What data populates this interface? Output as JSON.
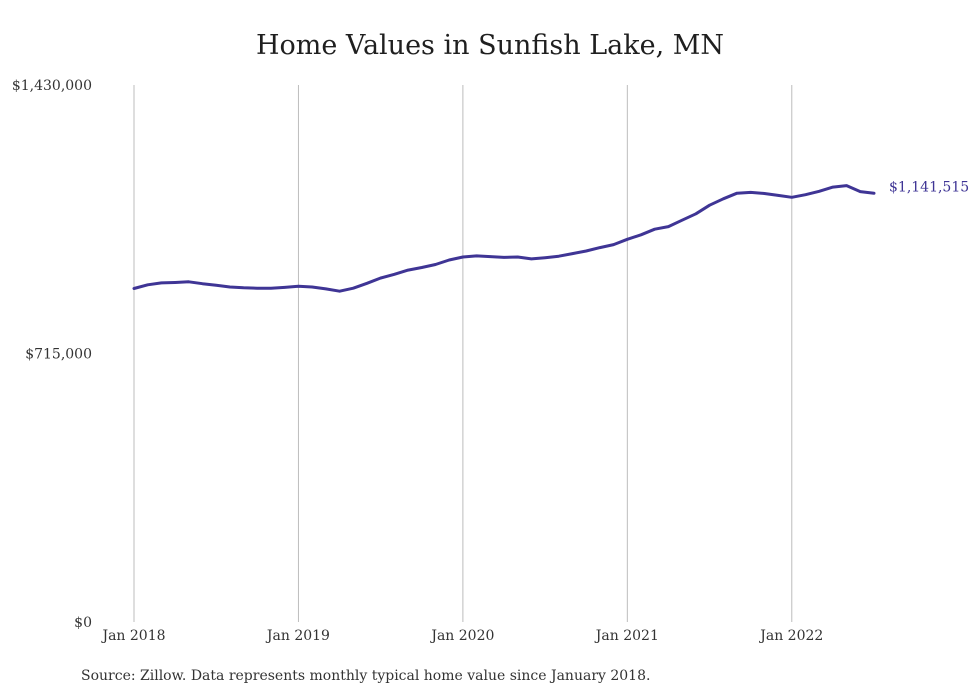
{
  "chart_data": {
    "type": "line",
    "title": "Home Values in Sunfish Lake, MN",
    "xlabel": "",
    "ylabel": "",
    "ylim": [
      0,
      1430000
    ],
    "xlim": [
      "2018-01",
      "2022-07"
    ],
    "y_ticks": [
      {
        "value": 0,
        "label": "$0"
      },
      {
        "value": 715000,
        "label": "$715,000"
      },
      {
        "value": 1430000,
        "label": "$1,430,000"
      }
    ],
    "x_ticks": [
      {
        "x": "2018-01",
        "label": "Jan 2018"
      },
      {
        "x": "2019-01",
        "label": "Jan 2019"
      },
      {
        "x": "2020-01",
        "label": "Jan 2020"
      },
      {
        "x": "2021-01",
        "label": "Jan 2021"
      },
      {
        "x": "2022-01",
        "label": "Jan 2022"
      }
    ],
    "grid": "vertical lines at year ticks",
    "series": [
      {
        "color": "#3f3595",
        "end_label": "$1,141,515",
        "points": [
          [
            "2018-01",
            888000
          ],
          [
            "2018-02",
            898000
          ],
          [
            "2018-03",
            903000
          ],
          [
            "2018-04",
            904000
          ],
          [
            "2018-05",
            906000
          ],
          [
            "2018-06",
            901000
          ],
          [
            "2018-07",
            897000
          ],
          [
            "2018-08",
            892000
          ],
          [
            "2018-09",
            890000
          ],
          [
            "2018-10",
            889000
          ],
          [
            "2018-11",
            889000
          ],
          [
            "2018-12",
            891000
          ],
          [
            "2019-01",
            894000
          ],
          [
            "2019-02",
            892000
          ],
          [
            "2019-03",
            887000
          ],
          [
            "2019-04",
            881000
          ],
          [
            "2019-05",
            889000
          ],
          [
            "2019-06",
            902000
          ],
          [
            "2019-07",
            916000
          ],
          [
            "2019-08",
            926000
          ],
          [
            "2019-09",
            937000
          ],
          [
            "2019-10",
            944000
          ],
          [
            "2019-11",
            952000
          ],
          [
            "2019-12",
            964000
          ],
          [
            "2020-01",
            972000
          ],
          [
            "2020-02",
            975000
          ],
          [
            "2020-03",
            973000
          ],
          [
            "2020-04",
            971000
          ],
          [
            "2020-05",
            972000
          ],
          [
            "2020-06",
            967000
          ],
          [
            "2020-07",
            970000
          ],
          [
            "2020-08",
            974000
          ],
          [
            "2020-09",
            981000
          ],
          [
            "2020-10",
            988000
          ],
          [
            "2020-11",
            997000
          ],
          [
            "2020-12",
            1005000
          ],
          [
            "2021-01",
            1019000
          ],
          [
            "2021-02",
            1031000
          ],
          [
            "2021-03",
            1046000
          ],
          [
            "2021-04",
            1053000
          ],
          [
            "2021-05",
            1070000
          ],
          [
            "2021-06",
            1087000
          ],
          [
            "2021-07",
            1110000
          ],
          [
            "2021-08",
            1127000
          ],
          [
            "2021-09",
            1142000
          ],
          [
            "2021-10",
            1144000
          ],
          [
            "2021-11",
            1141000
          ],
          [
            "2021-12",
            1136000
          ],
          [
            "2022-01",
            1131000
          ],
          [
            "2022-02",
            1138000
          ],
          [
            "2022-03",
            1147000
          ],
          [
            "2022-04",
            1158000
          ],
          [
            "2022-05",
            1162000
          ],
          [
            "2022-06",
            1146000
          ],
          [
            "2022-07",
            1141515
          ]
        ]
      }
    ]
  },
  "source_note": "Source: Zillow. Data represents monthly typical home value since January 2018."
}
